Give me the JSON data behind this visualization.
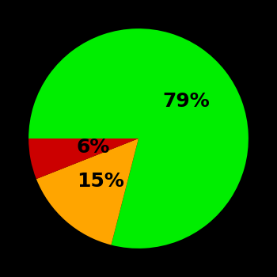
{
  "slices": [
    79,
    15,
    6
  ],
  "colors": [
    "#00ee00",
    "#ffa500",
    "#cc0000"
  ],
  "labels": [
    "79%",
    "15%",
    "6%"
  ],
  "background_color": "#000000",
  "figsize": [
    3.5,
    3.5
  ],
  "dpi": 100,
  "startangle": 180,
  "text_fontsize": 18,
  "text_fontweight": "bold",
  "label_radii": [
    0.55,
    0.52,
    0.42
  ]
}
